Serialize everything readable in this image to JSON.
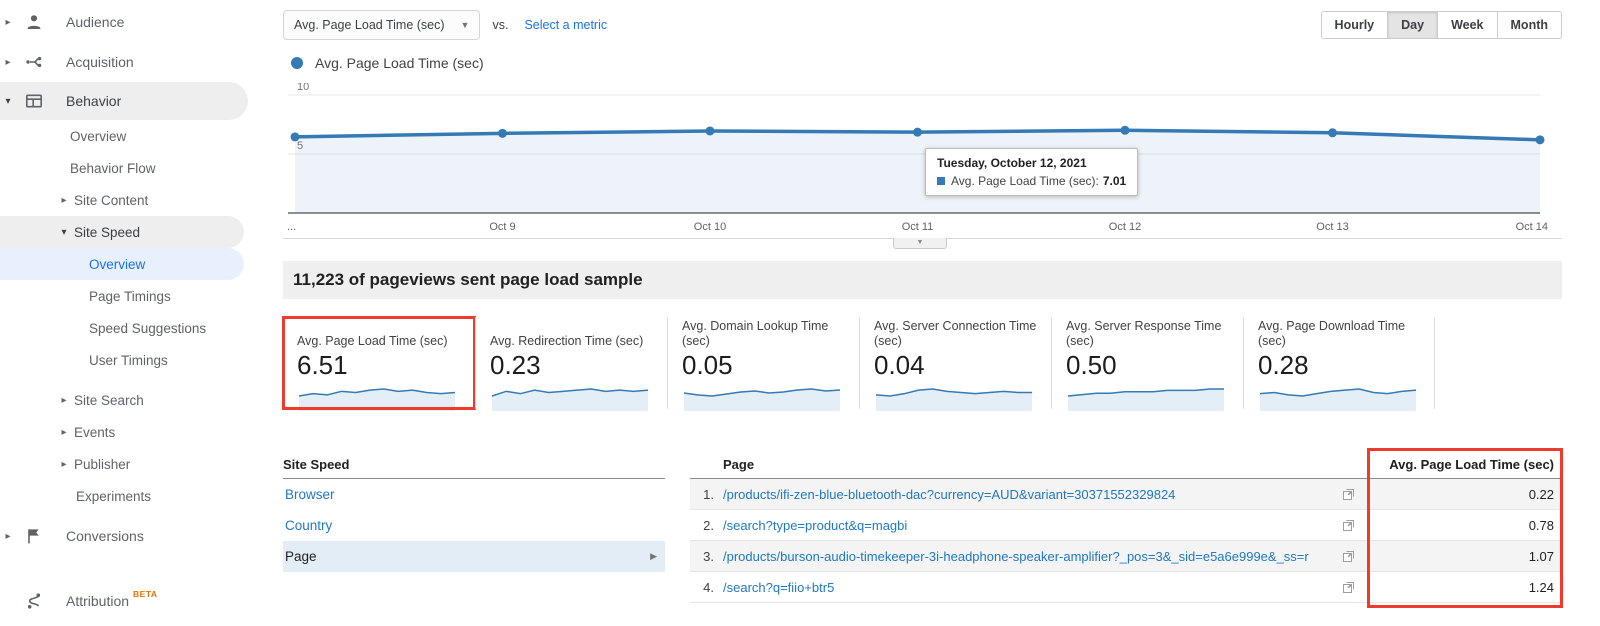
{
  "colors": {
    "line_blue": "#3579b5",
    "area_blue_opacity": "0.09",
    "spark_area": "#e4eef7",
    "ga_blue": "#1a73e8",
    "link_blue": "#1f78c1",
    "red": "#ef3b2d",
    "beta_orange": "#e37400"
  },
  "sidebar": {
    "top": [
      {
        "label": "Audience"
      },
      {
        "label": "Acquisition"
      },
      {
        "label": "Behavior"
      }
    ],
    "behavior_children": [
      {
        "label": "Overview"
      },
      {
        "label": "Behavior Flow"
      },
      {
        "label": "Site Content"
      },
      {
        "label": "Site Speed"
      }
    ],
    "site_speed_children": [
      {
        "label": "Overview"
      },
      {
        "label": "Page Timings"
      },
      {
        "label": "Speed Suggestions"
      },
      {
        "label": "User Timings"
      }
    ],
    "behavior_children_after": [
      {
        "label": "Site Search"
      },
      {
        "label": "Events"
      },
      {
        "label": "Publisher"
      },
      {
        "label": "Experiments"
      }
    ],
    "bottom": [
      {
        "label": "Conversions"
      },
      {
        "label": "Attribution",
        "badge": "BETA"
      }
    ]
  },
  "controls": {
    "metric_dropdown": "Avg. Page Load Time (sec)",
    "vs_label": "vs.",
    "select_metric": "Select a metric",
    "granularity": [
      {
        "label": "Hourly"
      },
      {
        "label": "Day"
      },
      {
        "label": "Week"
      },
      {
        "label": "Month"
      }
    ],
    "selected_granularity": "Day"
  },
  "legend": {
    "label": "Avg. Page Load Time (sec)"
  },
  "chart_data": {
    "type": "line",
    "title": "Avg. Page Load Time (sec)",
    "x_labels": [
      "...",
      "Oct 9",
      "Oct 10",
      "Oct 11",
      "Oct 12",
      "Oct 13",
      "Oct 14"
    ],
    "series": [
      {
        "name": "Avg. Page Load Time (sec)",
        "values": [
          6.45,
          6.75,
          6.95,
          6.85,
          7.01,
          6.8,
          6.2
        ]
      }
    ],
    "ylim": [
      0,
      10
    ],
    "yticks": [
      5,
      10
    ],
    "grid": "horizontal",
    "legend_position": "top-left",
    "tooltip": {
      "title": "Tuesday, October 12, 2021",
      "label": "Avg. Page Load Time (sec):",
      "value": "7.01"
    }
  },
  "sample_bar": {
    "text": "11,223 of pageviews sent page load sample"
  },
  "cards": [
    {
      "label": "Avg. Page Load Time (sec)",
      "value": "6.51",
      "highlighted": true,
      "sparkline": [
        5.0,
        5.2,
        5.1,
        5.4,
        5.3,
        5.5,
        5.6,
        5.4,
        5.5,
        5.3,
        5.2,
        5.3
      ]
    },
    {
      "label": "Avg. Redirection Time (sec)",
      "value": "0.23",
      "highlighted": false,
      "sparkline": [
        5.0,
        5.4,
        5.2,
        5.5,
        5.3,
        5.4,
        5.5,
        5.6,
        5.4,
        5.5,
        5.4,
        5.5
      ]
    },
    {
      "label": "Avg. Domain Lookup Time (sec)",
      "value": "0.05",
      "highlighted": false,
      "sparkline": [
        5.2,
        5.0,
        4.9,
        5.1,
        5.3,
        5.4,
        5.2,
        5.3,
        5.5,
        5.6,
        5.4,
        5.5
      ]
    },
    {
      "label": "Avg. Server Connection Time (sec)",
      "value": "0.04",
      "highlighted": false,
      "sparkline": [
        5.0,
        4.9,
        5.1,
        5.4,
        5.5,
        5.3,
        5.2,
        5.1,
        5.2,
        5.3,
        5.2,
        5.2
      ]
    },
    {
      "label": "Avg. Server Response Time (sec)",
      "value": "0.50",
      "highlighted": false,
      "sparkline": [
        5.1,
        5.2,
        5.3,
        5.3,
        5.4,
        5.4,
        5.4,
        5.5,
        5.5,
        5.5,
        5.6,
        5.6
      ]
    },
    {
      "label": "Avg. Page Download Time (sec)",
      "value": "0.28",
      "highlighted": false,
      "sparkline": [
        5.2,
        5.3,
        5.1,
        5.0,
        5.2,
        5.4,
        5.5,
        5.6,
        5.3,
        5.2,
        5.4,
        5.5
      ]
    }
  ],
  "dimension_panel": {
    "header": "Site Speed",
    "items": [
      {
        "label": "Browser",
        "selected": false
      },
      {
        "label": "Country",
        "selected": false
      },
      {
        "label": "Page",
        "selected": true
      }
    ]
  },
  "table": {
    "col_page": "Page",
    "col_value": "Avg. Page Load Time (sec)",
    "rows": [
      {
        "num": "1.",
        "url": "/products/ifi-zen-blue-bluetooth-dac?currency=AUD&variant=30371552329824",
        "value": "0.22"
      },
      {
        "num": "2.",
        "url": "/search?type=product&q=magbi",
        "value": "0.78"
      },
      {
        "num": "3.",
        "url": "/products/burson-audio-timekeeper-3i-headphone-speaker-amplifier?_pos=3&_sid=e5a6e999e&_ss=r",
        "value": "1.07"
      },
      {
        "num": "4.",
        "url": "/search?q=fiio+btr5",
        "value": "1.24"
      }
    ]
  }
}
